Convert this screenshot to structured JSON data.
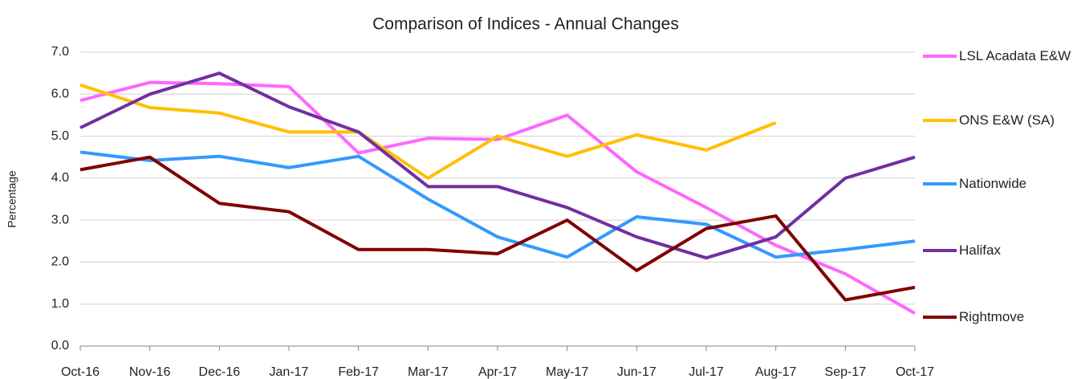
{
  "chart_data": {
    "type": "line",
    "title": "Comparison of Indices - Annual Changes",
    "y_label": "Percentage",
    "categories": [
      "Oct-16",
      "Nov-16",
      "Dec-16",
      "Jan-17",
      "Feb-17",
      "Mar-17",
      "Apr-17",
      "May-17",
      "Jun-17",
      "Jul-17",
      "Aug-17",
      "Sep-17",
      "Oct-17"
    ],
    "series": [
      {
        "name": "LSL Acadata E&W",
        "color": "#ff66ff",
        "values": [
          5.85,
          6.28,
          6.25,
          6.18,
          4.6,
          4.95,
          4.92,
          5.5,
          4.15,
          3.3,
          2.4,
          1.72,
          0.78
        ]
      },
      {
        "name": "ONS E&W (SA)",
        "color": "#ffc000",
        "values": [
          6.22,
          5.68,
          5.55,
          5.1,
          5.1,
          4.0,
          5.0,
          4.52,
          5.03,
          4.67,
          5.32,
          null,
          null
        ]
      },
      {
        "name": "Nationwide",
        "color": "#3399ff",
        "values": [
          4.62,
          4.42,
          4.52,
          4.25,
          4.52,
          3.5,
          2.6,
          2.12,
          3.08,
          2.9,
          2.12,
          2.3,
          2.5
        ]
      },
      {
        "name": "Halifax",
        "color": "#7030a0",
        "values": [
          5.2,
          6.0,
          6.5,
          5.7,
          5.1,
          3.8,
          3.8,
          3.3,
          2.6,
          2.1,
          2.6,
          4.0,
          4.5
        ]
      },
      {
        "name": "Rightmove",
        "color": "#800000",
        "values": [
          4.2,
          4.5,
          3.4,
          3.2,
          2.3,
          2.3,
          2.2,
          3.0,
          1.8,
          2.8,
          3.1,
          1.1,
          1.4
        ]
      }
    ],
    "ylim": [
      0,
      7
    ],
    "yticks": [
      {
        "value": 0,
        "label": "0.0"
      },
      {
        "value": 1,
        "label": "1.0"
      },
      {
        "value": 2,
        "label": "2.0"
      },
      {
        "value": 3,
        "label": "3.0"
      },
      {
        "value": 4,
        "label": "4.0"
      },
      {
        "value": 5,
        "label": "5.0"
      },
      {
        "value": 6,
        "label": "6.0"
      },
      {
        "value": 7,
        "label": "7.0"
      }
    ],
    "grid": true,
    "legend": "right"
  }
}
